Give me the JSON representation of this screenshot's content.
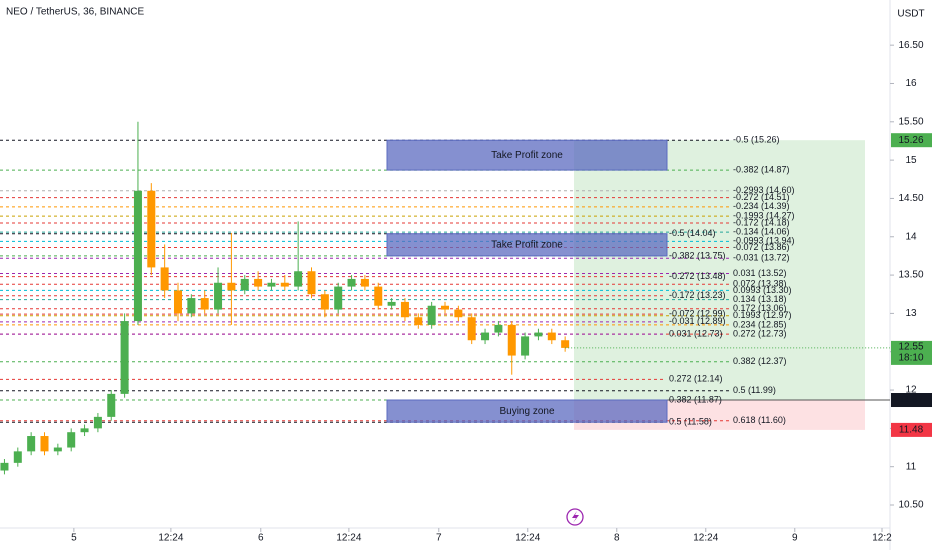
{
  "chart_data": {
    "type": "candlestick",
    "title": "NEO / TetherUS, 36, BINANCE",
    "y_unit": "USDT",
    "up_color": "#4caf50",
    "down_color": "#ff9800",
    "ylim": [
      10.2,
      16.75
    ],
    "yticks": [
      {
        "value": 10.5,
        "label": "10.50"
      },
      11,
      {
        "value": 11.5,
        "label": "11.50"
      },
      12,
      {
        "value": 12.5,
        "label": "12.50"
      },
      13,
      {
        "value": 13.5,
        "label": "13.50"
      },
      14,
      {
        "value": 14.5,
        "label": "14.50"
      },
      15,
      {
        "value": 15.5,
        "label": "15.50"
      },
      16,
      {
        "value": 16.5,
        "label": "16.50"
      }
    ],
    "xlim": [
      0,
      200
    ],
    "xticks": [
      {
        "value": 16.6,
        "label": "5"
      },
      {
        "value": 38.4,
        "label": "12:24"
      },
      {
        "value": 58.6,
        "label": "6"
      },
      {
        "value": 78.4,
        "label": "12:24"
      },
      {
        "value": 98.6,
        "label": "7"
      },
      {
        "value": 118.6,
        "label": "12:24"
      },
      {
        "value": 138.6,
        "label": "8"
      },
      {
        "value": 158.6,
        "label": "12:24"
      },
      {
        "value": 178.6,
        "label": "9"
      },
      {
        "value": 198.2,
        "label": "12:2"
      }
    ],
    "x": [
      1,
      4,
      7,
      10,
      13,
      16,
      19,
      22,
      25,
      28,
      31,
      34,
      37,
      40,
      43,
      46,
      49,
      52,
      55,
      58,
      61,
      64,
      67,
      70,
      73,
      76,
      79,
      82,
      85,
      88,
      91,
      94,
      97,
      100,
      103,
      106,
      109,
      112,
      115,
      118,
      121,
      124,
      127
    ],
    "open": [
      10.95,
      11.05,
      11.2,
      11.4,
      11.2,
      11.25,
      11.45,
      11.5,
      11.65,
      11.95,
      12.9,
      14.6,
      13.6,
      13.3,
      13.0,
      13.2,
      13.05,
      13.4,
      13.3,
      13.45,
      13.35,
      13.4,
      13.35,
      13.55,
      13.25,
      13.05,
      13.35,
      13.45,
      13.35,
      13.1,
      13.15,
      12.95,
      12.85,
      13.1,
      13.05,
      12.95,
      12.65,
      12.75,
      12.85,
      12.45,
      12.7,
      12.75,
      12.65
    ],
    "high": [
      11.1,
      11.25,
      11.45,
      11.45,
      11.3,
      11.5,
      11.55,
      11.7,
      12.0,
      13.0,
      15.5,
      14.7,
      13.9,
      13.4,
      13.25,
      13.3,
      13.6,
      14.05,
      13.5,
      13.55,
      13.45,
      13.5,
      14.2,
      13.6,
      13.3,
      13.4,
      13.5,
      13.5,
      13.4,
      13.2,
      13.2,
      13.0,
      13.15,
      13.15,
      13.1,
      13.0,
      12.8,
      12.9,
      12.9,
      12.75,
      12.8,
      12.8,
      12.7
    ],
    "low": [
      10.9,
      11.0,
      11.15,
      11.15,
      11.15,
      11.2,
      11.4,
      11.45,
      11.6,
      11.9,
      12.85,
      13.5,
      13.2,
      12.9,
      12.95,
      13.0,
      13.0,
      12.85,
      13.25,
      13.3,
      13.3,
      13.3,
      13.3,
      13.2,
      12.95,
      13.0,
      13.3,
      13.3,
      13.05,
      13.05,
      12.9,
      12.8,
      12.8,
      13.0,
      12.9,
      12.6,
      12.6,
      12.7,
      12.2,
      12.4,
      12.65,
      12.6,
      12.5
    ],
    "close": [
      11.05,
      11.2,
      11.4,
      11.2,
      11.25,
      11.45,
      11.5,
      11.65,
      11.95,
      12.9,
      14.6,
      13.6,
      13.3,
      13.0,
      13.2,
      13.05,
      13.4,
      13.3,
      13.45,
      13.35,
      13.4,
      13.35,
      13.55,
      13.25,
      13.05,
      13.35,
      13.45,
      13.35,
      13.1,
      13.15,
      12.95,
      12.85,
      13.1,
      13.05,
      12.95,
      12.65,
      12.75,
      12.85,
      12.45,
      12.7,
      12.75,
      12.65,
      12.55
    ],
    "fibs": [
      {
        "levels": [
          {
            "value": 15.26,
            "label": "-0.5 (15.26)",
            "color": "#131722"
          },
          {
            "value": 14.87,
            "label": "-0.382 (14.87)",
            "color": "#4caf50"
          },
          {
            "value": 14.6,
            "label": "-0.2993 (14.60)",
            "color": "#b0b0b0"
          },
          {
            "value": 14.51,
            "label": "-0.272 (14.51)",
            "color": "#e53935"
          },
          {
            "value": 14.39,
            "label": "-0.234 (14.39)",
            "color": "#ff9800"
          },
          {
            "value": 14.27,
            "label": "-0.1993 (14.27)",
            "color": "#c9a100"
          },
          {
            "value": 14.18,
            "label": "-0.172 (14.18)",
            "color": "#e53935"
          },
          {
            "value": 14.06,
            "label": "-0.134 (14.06)",
            "color": "#26a69a"
          },
          {
            "value": 13.94,
            "label": "-0.0993 (13.94)",
            "color": "#00bcd4"
          },
          {
            "value": 13.86,
            "label": "-0.072 (13.86)",
            "color": "#e53935"
          },
          {
            "value": 13.72,
            "label": "-0.031 (13.72)",
            "color": "#9c27b0"
          },
          {
            "value": 13.52,
            "label": "0.031 (13.52)",
            "color": "#9c27b0"
          },
          {
            "value": 13.38,
            "label": "0.072 (13.38)",
            "color": "#e53935"
          },
          {
            "value": 13.3,
            "label": "0.0993 (13.30)",
            "color": "#00bcd4"
          },
          {
            "value": 13.18,
            "label": "0.134 (13.18)",
            "color": "#26a69a"
          },
          {
            "value": 13.06,
            "label": "0.172 (13.06)",
            "color": "#e53935"
          },
          {
            "value": 12.97,
            "label": "0.1993 (12.97)",
            "color": "#c9a100"
          },
          {
            "value": 12.85,
            "label": "0.234 (12.85)",
            "color": "#ff9800"
          },
          {
            "value": 12.73,
            "label": "0.272 (12.73)",
            "color": "#e53935"
          },
          {
            "value": 12.37,
            "label": "0.382 (12.37)",
            "color": "#4caf50"
          },
          {
            "value": 11.99,
            "label": "0.5 (11.99)",
            "color": "#131722"
          },
          {
            "value": 11.6,
            "label": "0.618 (11.60)",
            "color": "#e53935"
          }
        ]
      },
      {
        "levels": [
          {
            "value": 14.04,
            "label": "-0.5 (14.04)",
            "color": "#131722"
          },
          {
            "value": 13.75,
            "label": "-0.382 (13.75)",
            "color": "#4caf50"
          },
          {
            "value": 13.48,
            "label": "-0.272 (13.48)",
            "color": "#e53935"
          },
          {
            "value": 13.23,
            "label": "-0.172 (13.23)",
            "color": "#e53935"
          },
          {
            "value": 12.99,
            "label": "-0.072 (12.99)",
            "color": "#e53935"
          },
          {
            "value": 12.89,
            "label": "-0.031 (12.89)",
            "color": "#9c27b0"
          },
          {
            "value": 12.73,
            "label": "0.031 (12.73)",
            "color": "#9c27b0"
          },
          {
            "value": 12.14,
            "label": "0.272 (12.14)",
            "color": "#e53935"
          },
          {
            "value": 11.87,
            "label": "0.382 (11.87)",
            "color": "#4caf50"
          },
          {
            "value": 11.58,
            "label": "0.5 (11.58)",
            "color": "#131722"
          }
        ]
      }
    ],
    "zones": [
      {
        "label": "Take Profit zone",
        "top": 15.26,
        "bottom": 14.87
      },
      {
        "label": "Take Profit zone",
        "top": 14.04,
        "bottom": 13.75
      },
      {
        "label": "Buying zone",
        "top": 11.87,
        "bottom": 11.58
      }
    ],
    "position": {
      "target": 15.26,
      "entry": 11.87,
      "stop": 11.48
    },
    "last_price": {
      "value": 12.55,
      "countdown": "18:10"
    },
    "price_tags": [
      {
        "value": 15.26,
        "color": "#4caf50"
      },
      {
        "value": 11.87,
        "color": "#131722"
      },
      {
        "value": 11.48,
        "color": "#f23645"
      }
    ]
  }
}
